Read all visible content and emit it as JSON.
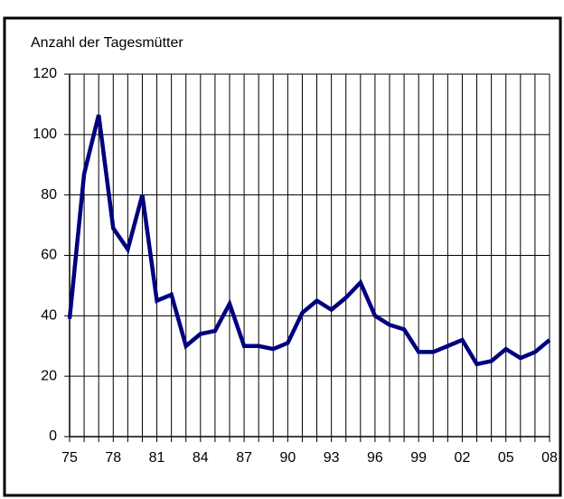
{
  "chart_data": {
    "type": "line",
    "ylabel": "Anzahl der Tagesmütter",
    "categories": [
      "75",
      null,
      null,
      "78",
      null,
      null,
      "81",
      null,
      null,
      "84",
      null,
      null,
      "87",
      null,
      null,
      "90",
      null,
      null,
      "93",
      null,
      null,
      "96",
      null,
      null,
      "99",
      null,
      null,
      "02",
      null,
      null,
      "05",
      null,
      null,
      "08"
    ],
    "series": [
      {
        "color": "#000080",
        "values": [
          39,
          87,
          106.5,
          69,
          62,
          80,
          45,
          47,
          30,
          34,
          35,
          44,
          30,
          30,
          29,
          31,
          41,
          45,
          42,
          46,
          51,
          40,
          37,
          35.5,
          28,
          28,
          30,
          32,
          24,
          25,
          29,
          26,
          28,
          32
        ]
      }
    ],
    "ylim": [
      0,
      120
    ],
    "yticks": [
      0,
      20,
      40,
      60,
      80,
      100,
      120
    ],
    "grid": true
  }
}
